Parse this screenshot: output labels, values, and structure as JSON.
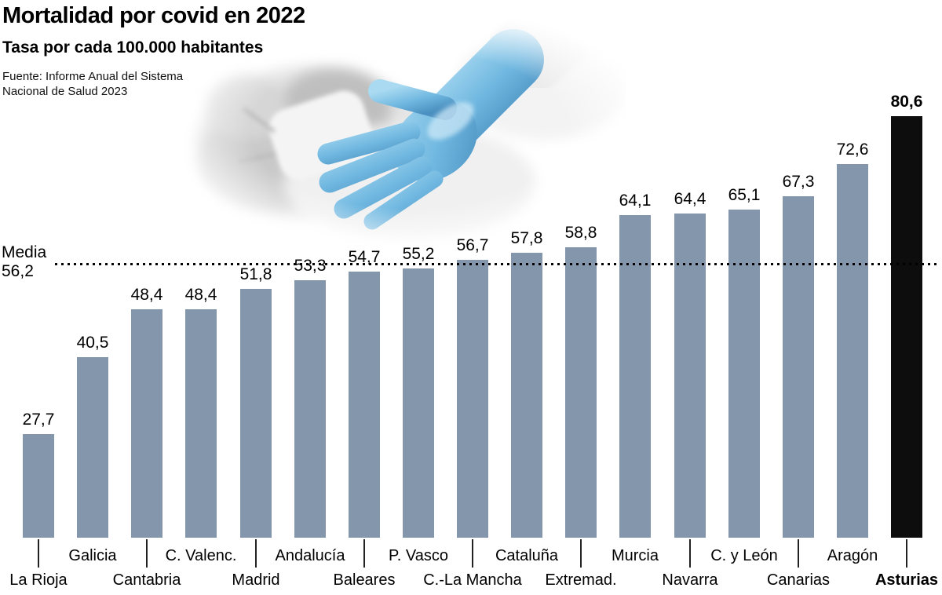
{
  "header": {
    "title": "Mortalidad por covid en 2022",
    "subtitle": "Tasa por cada 100.000 habitantes",
    "source_line1": "Fuente: Informe Anual del Sistema",
    "source_line2": "Nacional de Salud 2023"
  },
  "chart_data": {
    "type": "bar",
    "title": "Mortalidad por covid en 2022",
    "subtitle": "Tasa por cada 100.000 habitantes",
    "source": "Fuente: Informe Anual del Sistema Nacional de Salud 2023",
    "ylabel": "Tasa por cada 100.000 habitantes",
    "categories": [
      "La Rioja",
      "Galicia",
      "Cantabria",
      "C. Valenc.",
      "Madrid",
      "Andalucía",
      "Baleares",
      "P. Vasco",
      "C.-La Mancha",
      "Cataluña",
      "Extremad.",
      "Murcia",
      "Navarra",
      "C. y León",
      "Canarias",
      "Aragón",
      "Asturias"
    ],
    "values": [
      27.7,
      40.5,
      48.4,
      48.4,
      51.8,
      53.3,
      54.7,
      55.2,
      56.7,
      57.8,
      58.8,
      64.1,
      64.4,
      65.1,
      67.3,
      72.6,
      80.6
    ],
    "display_values": [
      "27,7",
      "40,5",
      "48,4",
      "48,4",
      "51,8",
      "53,3",
      "54,7",
      "55,2",
      "56,7",
      "57,8",
      "58,8",
      "64,1",
      "64,4",
      "65,1",
      "67,3",
      "72,6",
      "80,6"
    ],
    "average": {
      "label": "Media",
      "value": 56.2,
      "display": "56,2"
    },
    "highlight_category": "Asturias",
    "legend": "none",
    "grid": "off",
    "colors": {
      "bar": "#8496ab",
      "highlight": "#0d0d0d",
      "average_line": "#000000",
      "glove_accent": "#6fb7e0"
    }
  }
}
